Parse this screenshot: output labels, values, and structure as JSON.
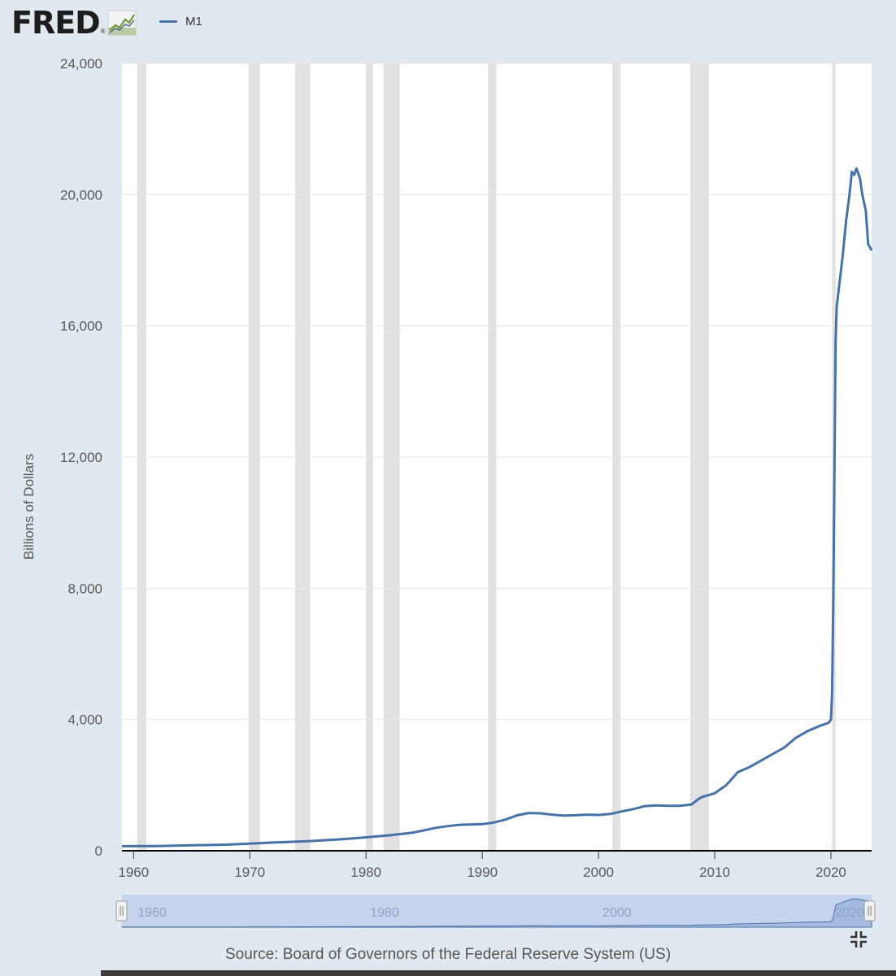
{
  "header": {
    "logo_text": "FRED",
    "logo_reg": "®",
    "legend_label": "M1",
    "legend_color": "#4572a7",
    "logo_icon": "fred-chart-line-icon"
  },
  "source_text": "Source: Board of Governors of the Federal Reserve System (US)",
  "icons": {
    "collapse": "collapse-arrows-icon",
    "navigator_left_handle": "drag-handle-icon",
    "navigator_right_handle": "drag-handle-icon"
  },
  "colors": {
    "page_background": "#e1e9f0",
    "plot_background": "#ffffff",
    "series": "#4572a7",
    "recession": "#e1e1e1",
    "navigator_fill": "#b6c6e6"
  },
  "chart_data": {
    "type": "line",
    "ylabel": "Billions of Dollars",
    "xlabel": "",
    "xlim": [
      1959,
      2023.5
    ],
    "ylim": [
      0,
      24000
    ],
    "xticks": [
      1960,
      1970,
      1980,
      1990,
      2000,
      2010,
      2020
    ],
    "yticks": [
      0,
      4000,
      8000,
      12000,
      16000,
      20000,
      24000
    ],
    "ytick_labels": [
      "0",
      "4,000",
      "8,000",
      "12,000",
      "16,000",
      "20,000",
      "24,000"
    ],
    "grid": "horizontal",
    "legend_position": "top-left",
    "recessions": [
      [
        1960.3,
        1961.1
      ],
      [
        1969.9,
        1970.9
      ],
      [
        1973.9,
        1975.2
      ],
      [
        1980.0,
        1980.6
      ],
      [
        1981.5,
        1982.9
      ],
      [
        1990.5,
        1991.2
      ],
      [
        2001.2,
        2001.9
      ],
      [
        2007.9,
        2009.5
      ],
      [
        2020.1,
        2020.4
      ]
    ],
    "series": [
      {
        "name": "M1",
        "color": "#4572a7",
        "x": [
          1959,
          1962,
          1965,
          1968,
          1970,
          1972,
          1975,
          1978,
          1980,
          1982,
          1984,
          1986,
          1987,
          1988,
          1990,
          1991,
          1992,
          1993,
          1994,
          1995,
          1996,
          1997,
          1998,
          1999,
          2000,
          2001,
          2002,
          2003,
          2004,
          2005,
          2006,
          2007,
          2008,
          2008.7,
          2009,
          2010,
          2011,
          2011.5,
          2012,
          2013,
          2014,
          2015,
          2016,
          2017,
          2018,
          2019,
          2019.8,
          2020.0,
          2020.1,
          2020.2,
          2020.3,
          2020.4,
          2020.5,
          2020.7,
          2021,
          2021.3,
          2021.6,
          2021.8,
          2022,
          2022.2,
          2022.3,
          2022.5,
          2022.7,
          2023,
          2023.2,
          2023.5
        ],
        "values": [
          140,
          145,
          165,
          185,
          215,
          250,
          290,
          355,
          410,
          470,
          550,
          700,
          750,
          790,
          810,
          860,
          950,
          1080,
          1150,
          1140,
          1100,
          1070,
          1080,
          1100,
          1090,
          1120,
          1200,
          1270,
          1360,
          1380,
          1370,
          1370,
          1410,
          1600,
          1650,
          1750,
          2000,
          2200,
          2400,
          2550,
          2750,
          2950,
          3150,
          3450,
          3650,
          3800,
          3900,
          4000,
          4800,
          7500,
          11500,
          15500,
          16600,
          17200,
          18100,
          19200,
          20000,
          20700,
          20600,
          20800,
          20700,
          20500,
          20000,
          19500,
          18500,
          18300
        ]
      }
    ]
  },
  "navigator": {
    "labels": [
      "1960",
      "1980",
      "2000",
      "2020"
    ],
    "label_years": [
      1960,
      1980,
      2000,
      2020
    ]
  }
}
